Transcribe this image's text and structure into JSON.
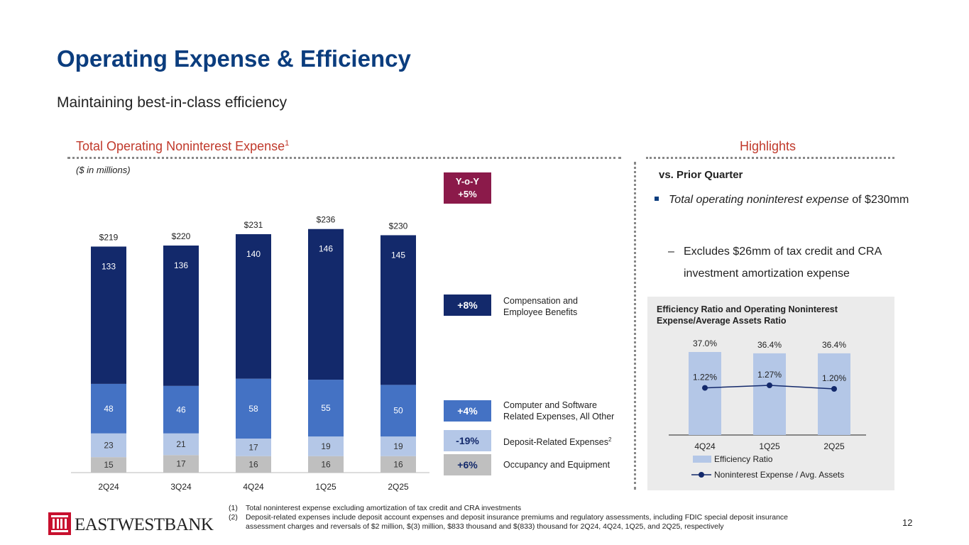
{
  "title": "Operating Expense & Efficiency",
  "subtitle": "Maintaining best-in-class efficiency",
  "left_section": {
    "heading": "Total Operating Noninterest Expense",
    "heading_sup": "1",
    "units": "($ in millions)"
  },
  "right_section": {
    "heading": "Highlights",
    "vs_heading": "vs. Prior Quarter",
    "bullet_italic": "Total operating noninterest expense",
    "bullet_rest": " of $230mm",
    "sub_dash": "–",
    "sub_bullet": "Excludes $26mm of tax credit and CRA investment amortization expense"
  },
  "yoy": {
    "line1": "Y-o-Y",
    "line2": "+5%"
  },
  "legend": [
    {
      "badge": "+8%",
      "label_line1": "Compensation and",
      "label_line2": "Employee Benefits",
      "color": "#13296b"
    },
    {
      "badge": "+4%",
      "label_line1": "Computer and Software",
      "label_line2": "Related Expenses, All Other",
      "color": "#4472c4"
    },
    {
      "badge": "-19%",
      "label_line1": "Deposit-Related Expenses",
      "label_sup": "2",
      "color": "#b4c7e7",
      "text_color": "#13296b"
    },
    {
      "badge": "+6%",
      "label_line1": "Occupancy and Equipment",
      "color": "#bfbfbf",
      "text_color": "#13296b"
    }
  ],
  "chart_data": [
    {
      "type": "bar",
      "stacked": true,
      "title": "Total Operating Noninterest Expense",
      "units": "$ in millions",
      "categories": [
        "2Q24",
        "3Q24",
        "4Q24",
        "1Q25",
        "2Q25"
      ],
      "totals": [
        "$219",
        "$220",
        "$231",
        "$236",
        "$230"
      ],
      "total_values": [
        219,
        220,
        231,
        236,
        230
      ],
      "series": [
        {
          "name": "Occupancy and Equipment",
          "values": [
            15,
            17,
            16,
            16,
            16
          ],
          "color": "#bfbfbf",
          "label_color": "#333333"
        },
        {
          "name": "Deposit-Related Expenses",
          "values": [
            23,
            21,
            17,
            19,
            19
          ],
          "color": "#b4c7e7",
          "label_color": "#333333"
        },
        {
          "name": "Computer and Software Related Expenses, All Other",
          "values": [
            48,
            46,
            58,
            55,
            50
          ],
          "color": "#4472c4",
          "label_color": "#ffffff"
        },
        {
          "name": "Compensation and Employee Benefits",
          "values": [
            133,
            136,
            140,
            146,
            145
          ],
          "color": "#13296b",
          "label_color": "#ffffff"
        }
      ]
    },
    {
      "type": "bar",
      "title": "Efficiency Ratio and Operating Noninterest Expense/Average Assets Ratio",
      "categories": [
        "4Q24",
        "1Q25",
        "2Q25"
      ],
      "series": [
        {
          "name": "Efficiency Ratio",
          "values": [
            37.0,
            36.4,
            36.4
          ],
          "labels": [
            "37.0%",
            "36.4%",
            "36.4%"
          ],
          "color": "#b4c7e7"
        },
        {
          "name": "Noninterest Expense / Avg. Assets",
          "type": "line",
          "values": [
            1.22,
            1.27,
            1.2
          ],
          "labels": [
            "1.22%",
            "1.27%",
            "1.20%"
          ],
          "color": "#13296b"
        }
      ]
    }
  ],
  "footnotes": [
    {
      "num": "(1)",
      "text": "Total noninterest expense excluding amortization of tax credit and CRA investments"
    },
    {
      "num": "(2)",
      "text": "Deposit-related expenses include deposit account expenses and deposit insurance premiums and regulatory assessments, including FDIC special deposit insurance assessment charges and reversals of $2 million, $(3) million, $833 thousand and $(833) thousand for 2Q24, 4Q24, 1Q25, and 2Q25, respectively"
    }
  ],
  "logo_text": "EASTWESTBANK",
  "page_number": "12"
}
